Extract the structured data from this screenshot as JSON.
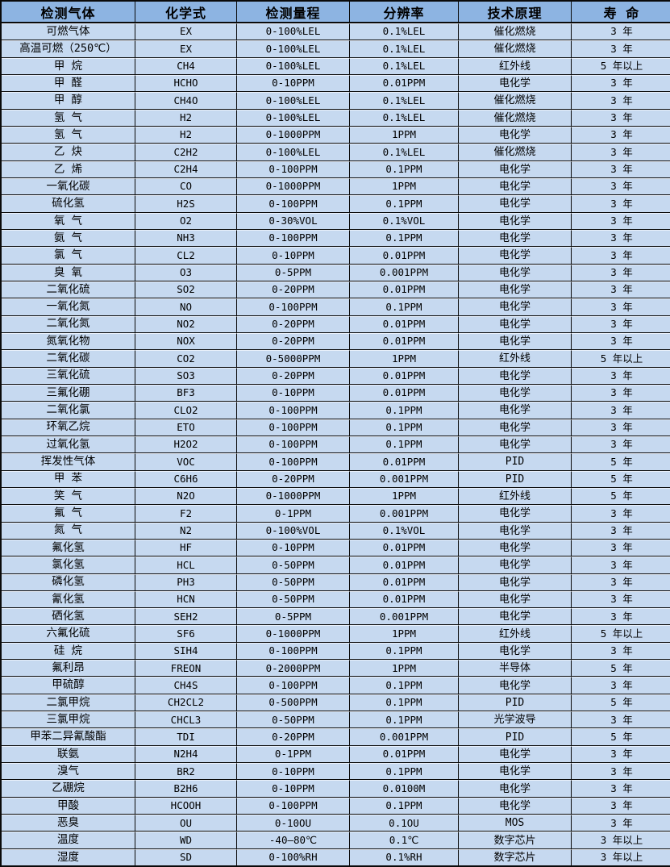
{
  "table": {
    "headers": [
      "检测气体",
      "化学式",
      "检测量程",
      "分辨率",
      "技术原理",
      "寿 命"
    ],
    "column_keys": [
      "gas-name",
      "chemical-formula",
      "detection-range",
      "resolution",
      "technology-principle",
      "lifespan"
    ],
    "rows": [
      [
        "可燃气体",
        "EX",
        "0-100%LEL",
        "0.1%LEL",
        "催化燃烧",
        "3 年"
      ],
      [
        "高温可燃（250℃）",
        "EX",
        "0-100%LEL",
        "0.1%LEL",
        "催化燃烧",
        "3 年"
      ],
      [
        "甲 烷",
        "CH4",
        "0-100%LEL",
        "0.1%LEL",
        "红外线",
        "5 年以上"
      ],
      [
        "甲 醛",
        "HCHO",
        "0-10PPM",
        "0.01PPM",
        "电化学",
        "3 年"
      ],
      [
        "甲 醇",
        "CH4O",
        "0-100%LEL",
        "0.1%LEL",
        "催化燃烧",
        "3 年"
      ],
      [
        "氢 气",
        "H2",
        "0-100%LEL",
        "0.1%LEL",
        "催化燃烧",
        "3 年"
      ],
      [
        "氢 气",
        "H2",
        "0-1000PPM",
        "1PPM",
        "电化学",
        "3 年"
      ],
      [
        "乙 炔",
        "C2H2",
        "0-100%LEL",
        "0.1%LEL",
        "催化燃烧",
        "3 年"
      ],
      [
        "乙 烯",
        "C2H4",
        "0-100PPM",
        "0.1PPM",
        "电化学",
        "3 年"
      ],
      [
        "一氧化碳",
        "CO",
        "0-1000PPM",
        "1PPM",
        "电化学",
        "3 年"
      ],
      [
        "硫化氢",
        "H2S",
        "0-100PPM",
        "0.1PPM",
        "电化学",
        "3 年"
      ],
      [
        "氧 气",
        "O2",
        "0-30%VOL",
        "0.1%VOL",
        "电化学",
        "3 年"
      ],
      [
        "氨 气",
        "NH3",
        "0-100PPM",
        "0.1PPM",
        "电化学",
        "3 年"
      ],
      [
        "氯 气",
        "CL2",
        "0-10PPM",
        "0.01PPM",
        "电化学",
        "3 年"
      ],
      [
        "臭 氧",
        "O3",
        "0-5PPM",
        "0.001PPM",
        "电化学",
        "3 年"
      ],
      [
        "二氧化硫",
        "SO2",
        "0-20PPM",
        "0.01PPM",
        "电化学",
        "3 年"
      ],
      [
        "一氧化氮",
        "NO",
        "0-100PPM",
        "0.1PPM",
        "电化学",
        "3 年"
      ],
      [
        "二氧化氮",
        "NO2",
        "0-20PPM",
        "0.01PPM",
        "电化学",
        "3 年"
      ],
      [
        "氮氧化物",
        "NOX",
        "0-20PPM",
        "0.01PPM",
        "电化学",
        "3 年"
      ],
      [
        "二氧化碳",
        "CO2",
        "0-5000PPM",
        "1PPM",
        "红外线",
        "5 年以上"
      ],
      [
        "三氧化硫",
        "SO3",
        "0-20PPM",
        "0.01PPM",
        "电化学",
        "3 年"
      ],
      [
        "三氟化硼",
        "BF3",
        "0-10PPM",
        "0.01PPM",
        "电化学",
        "3 年"
      ],
      [
        "二氧化氯",
        "CLO2",
        "0-100PPM",
        "0.1PPM",
        "电化学",
        "3 年"
      ],
      [
        "环氧乙烷",
        "ETO",
        "0-100PPM",
        "0.1PPM",
        "电化学",
        "3 年"
      ],
      [
        "过氧化氢",
        "H2O2",
        "0-100PPM",
        "0.1PPM",
        "电化学",
        "3 年"
      ],
      [
        "挥发性气体",
        "VOC",
        "0-100PPM",
        "0.01PPM",
        "PID",
        "5 年"
      ],
      [
        "甲 苯",
        "C6H6",
        "0-20PPM",
        "0.001PPM",
        "PID",
        "5 年"
      ],
      [
        "笑 气",
        "N2O",
        "0-1000PPM",
        "1PPM",
        "红外线",
        "5 年"
      ],
      [
        "氟 气",
        "F2",
        "0-1PPM",
        "0.001PPM",
        "电化学",
        "3 年"
      ],
      [
        "氮 气",
        "N2",
        "0-100%VOL",
        "0.1%VOL",
        "电化学",
        "3 年"
      ],
      [
        "氟化氢",
        "HF",
        "0-10PPM",
        "0.01PPM",
        "电化学",
        "3 年"
      ],
      [
        "氯化氢",
        "HCL",
        "0-50PPM",
        "0.01PPM",
        "电化学",
        "3 年"
      ],
      [
        "磷化氢",
        "PH3",
        "0-50PPM",
        "0.01PPM",
        "电化学",
        "3 年"
      ],
      [
        "氰化氢",
        "HCN",
        "0-50PPM",
        "0.01PPM",
        "电化学",
        "3 年"
      ],
      [
        "硒化氢",
        "SEH2",
        "0-5PPM",
        "0.001PPM",
        "电化学",
        "3 年"
      ],
      [
        "六氟化硫",
        "SF6",
        "0-1000PPM",
        "1PPM",
        "红外线",
        "5 年以上"
      ],
      [
        "硅 烷",
        "SIH4",
        "0-100PPM",
        "0.1PPM",
        "电化学",
        "3 年"
      ],
      [
        "氟利昂",
        "FREON",
        "0-2000PPM",
        "1PPM",
        "半导体",
        "5 年"
      ],
      [
        "甲硫醇",
        "CH4S",
        "0-100PPM",
        "0.1PPM",
        "电化学",
        "3 年"
      ],
      [
        "二氯甲烷",
        "CH2CL2",
        "0-500PPM",
        "0.1PPM",
        "PID",
        "5 年"
      ],
      [
        "三氯甲烷",
        "CHCL3",
        "0-50PPM",
        "0.1PPM",
        "光学波导",
        "3 年"
      ],
      [
        "甲苯二异氰酸酯",
        "TDI",
        "0-20PPM",
        "0.001PPM",
        "PID",
        "5 年"
      ],
      [
        "联氨",
        "N2H4",
        "0-1PPM",
        "0.01PPM",
        "电化学",
        "3 年"
      ],
      [
        "溴气",
        "BR2",
        "0-10PPM",
        "0.1PPM",
        "电化学",
        "3 年"
      ],
      [
        "乙硼烷",
        "B2H6",
        "0-10PPM",
        "0.0100M",
        "电化学",
        "3 年"
      ],
      [
        "甲酸",
        "HCOOH",
        "0-100PPM",
        "0.1PPM",
        "电化学",
        "3 年"
      ],
      [
        "恶臭",
        "OU",
        "0-10OU",
        "0.1OU",
        "MOS",
        "3 年"
      ],
      [
        "温度",
        "WD",
        "-40—80℃",
        "0.1℃",
        "数字芯片",
        "3 年以上"
      ],
      [
        "湿度",
        "SD",
        "0-100%RH",
        "0.1%RH",
        "数字芯片",
        "3 年以上"
      ]
    ],
    "colors": {
      "header_bg": "#8DB4E2",
      "row_bg": "#C6D9F0",
      "border": "#0A0A0A",
      "hairline": "#EAF1FB",
      "text": "#000000"
    }
  }
}
